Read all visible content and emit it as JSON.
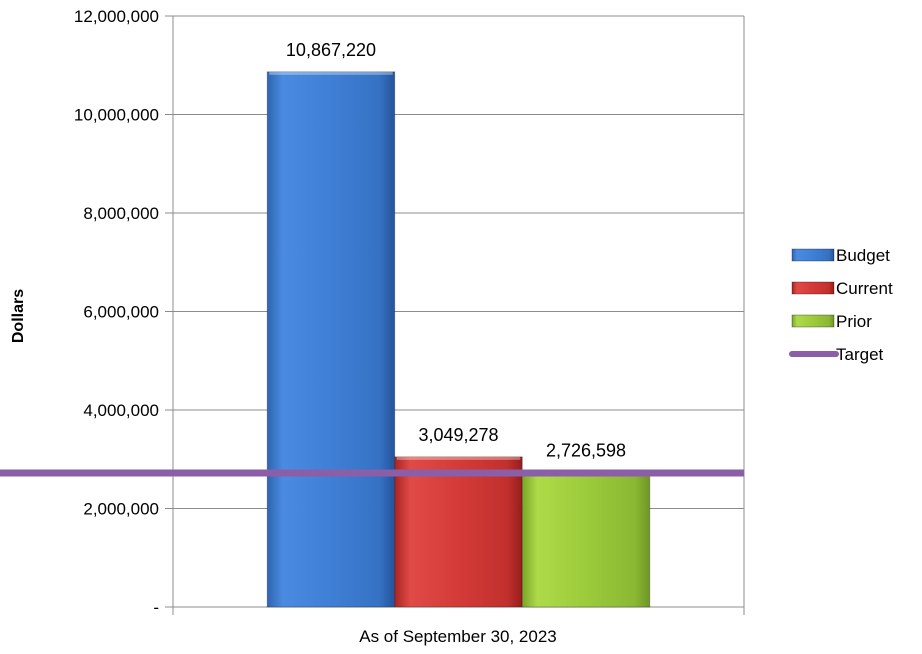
{
  "chart_data": {
    "type": "bar",
    "categories": [
      "As of September 30, 2023"
    ],
    "series": [
      {
        "name": "Budget",
        "values": [
          10867220
        ],
        "label": "10,867,220",
        "color": "#3f80d6"
      },
      {
        "name": "Current",
        "values": [
          3049278
        ],
        "label": "3,049,278",
        "color": "#d43b38"
      },
      {
        "name": "Prior",
        "values": [
          2726598
        ],
        "label": "2,726,598",
        "color": "#9bc83a"
      }
    ],
    "target": {
      "name": "Target",
      "value": 2720000,
      "color": "#8a5fa8"
    },
    "ylabel": "Dollars",
    "xlabel": "As of September 30, 2023",
    "ylim": [
      0,
      12000000
    ],
    "yticks": [
      {
        "value": 0,
        "label": "-"
      },
      {
        "value": 2000000,
        "label": "2,000,000"
      },
      {
        "value": 4000000,
        "label": "4,000,000"
      },
      {
        "value": 6000000,
        "label": "6,000,000"
      },
      {
        "value": 8000000,
        "label": "8,000,000"
      },
      {
        "value": 10000000,
        "label": "10,000,000"
      },
      {
        "value": 12000000,
        "label": "12,000,000"
      }
    ],
    "grid": true,
    "legend_position": "right"
  }
}
